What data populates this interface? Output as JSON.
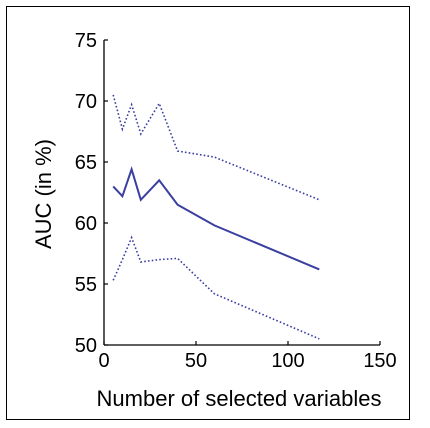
{
  "chart_data": {
    "type": "line",
    "xlabel": "Number of selected variables",
    "ylabel": "AUC (in %)",
    "xlim": [
      0,
      150
    ],
    "ylim": [
      50,
      75
    ],
    "xticks": [
      0,
      50,
      100,
      150
    ],
    "yticks": [
      50,
      55,
      60,
      65,
      70,
      75
    ],
    "xtick_labels": [
      "0",
      "50",
      "100",
      "150"
    ],
    "ytick_labels": [
      "50",
      "55",
      "60",
      "65",
      "70",
      "75"
    ],
    "grid": false,
    "series": [
      {
        "style": "dotted",
        "color": "#3a3fa0",
        "x": [
          5,
          10,
          15,
          20,
          30,
          40,
          60,
          117
        ],
        "y": [
          70.5,
          67.7,
          69.7,
          67.3,
          69.8,
          65.9,
          65.4,
          61.9
        ]
      },
      {
        "style": "solid",
        "color": "#3a3fa0",
        "x": [
          5,
          10,
          15,
          20,
          30,
          40,
          60,
          117
        ],
        "y": [
          63.0,
          62.2,
          64.4,
          61.9,
          63.5,
          61.5,
          59.8,
          56.2
        ]
      },
      {
        "style": "dotted",
        "color": "#3a3fa0",
        "x": [
          5,
          10,
          15,
          20,
          30,
          40,
          60,
          117
        ],
        "y": [
          55.3,
          57.0,
          58.8,
          56.8,
          57.0,
          57.1,
          54.2,
          50.5
        ]
      }
    ]
  }
}
